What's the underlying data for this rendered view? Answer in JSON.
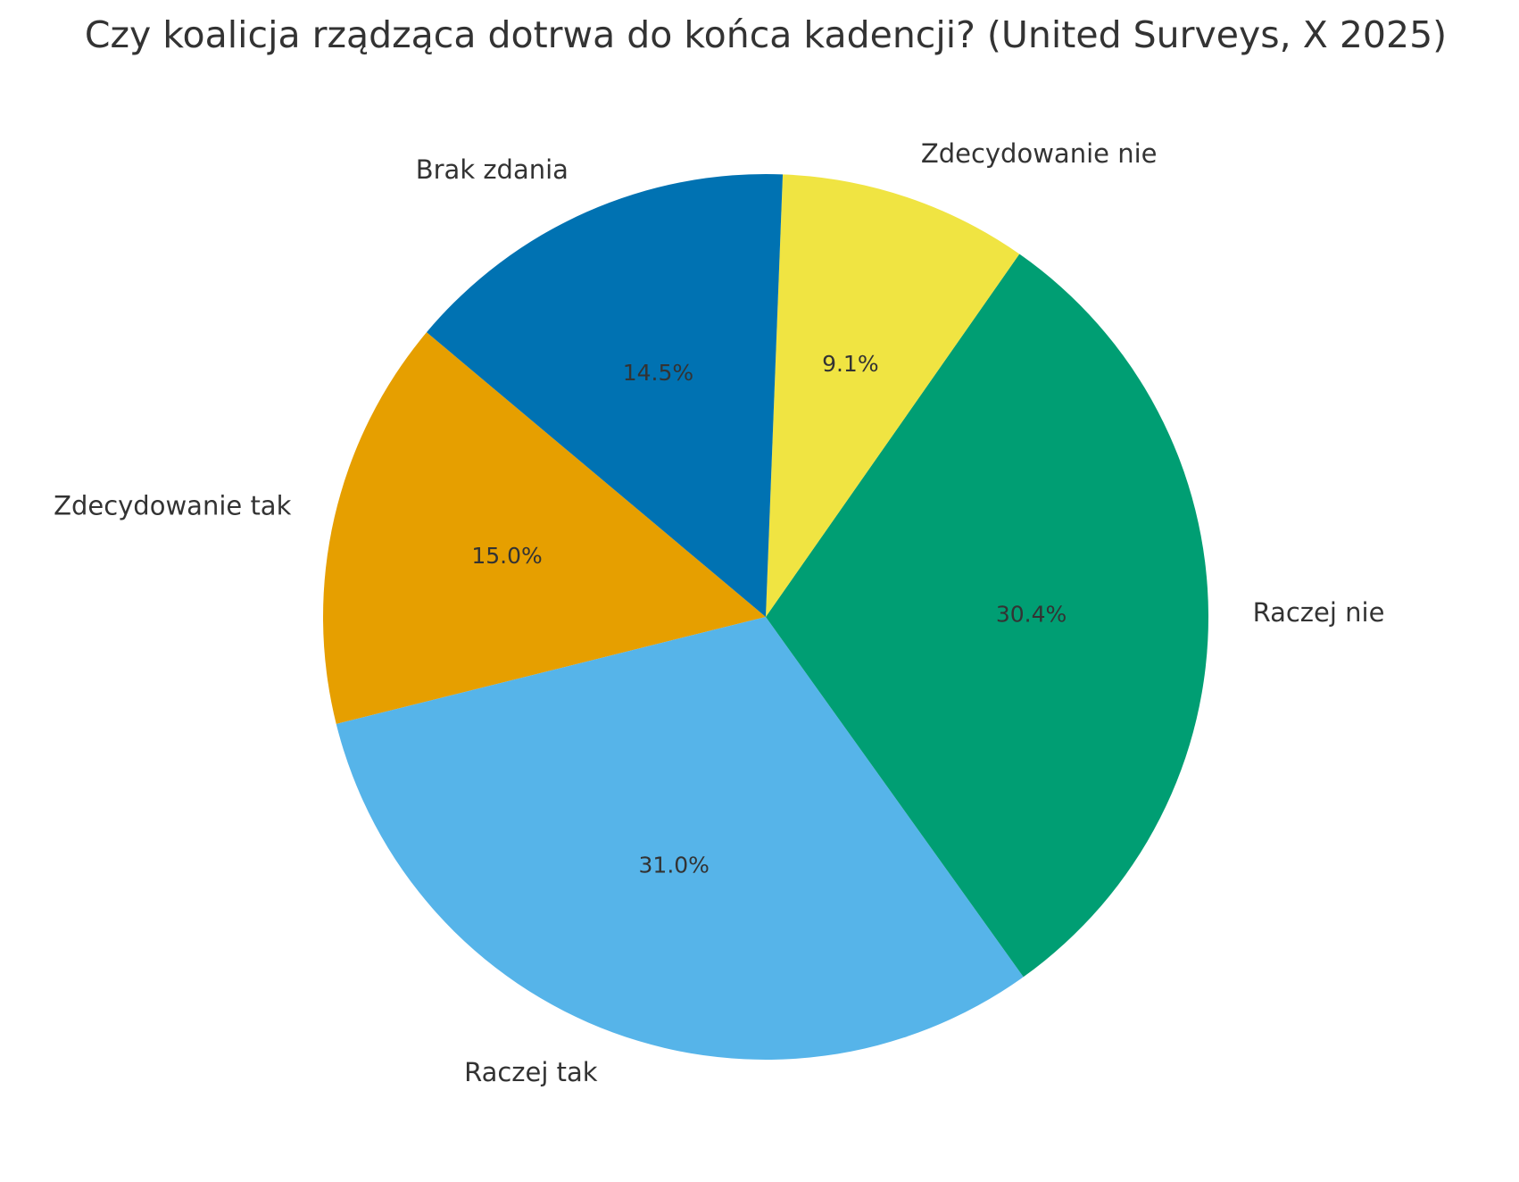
{
  "chart_data": {
    "type": "pie",
    "title": "Czy koalicja rządząca dotrwa do końca kadencji? (United Surveys, X 2025)",
    "categories": [
      "Zdecydowanie tak",
      "Raczej tak",
      "Raczej nie",
      "Zdecydowanie nie",
      "Brak zdania"
    ],
    "values": [
      15.0,
      31.0,
      30.4,
      9.1,
      14.5
    ],
    "value_labels": [
      "15.0%",
      "31.0%",
      "30.4%",
      "9.1%",
      "14.5%"
    ],
    "colors": [
      "#E69F00",
      "#56B4E9",
      "#009E73",
      "#F0E442",
      "#0072B2"
    ]
  }
}
